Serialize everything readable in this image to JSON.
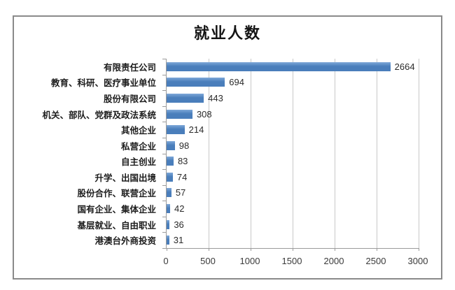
{
  "chart_data": {
    "type": "bar",
    "orientation": "horizontal",
    "title": "就业人数",
    "categories": [
      "有限责任公司",
      "教育、科研、医疗事业单位",
      "股份有限公司",
      "机关、部队、党群及政法系统",
      "其他企业",
      "私营企业",
      "自主创业",
      "升学、出国出境",
      "股份合作、联营企业",
      "国有企业、集体企业",
      "基层就业、自由职业",
      "港澳台外商投资"
    ],
    "values": [
      2664,
      694,
      443,
      308,
      214,
      98,
      83,
      74,
      57,
      42,
      36,
      31
    ],
    "value_labels": [
      "2664",
      "694",
      "443",
      "308",
      "214",
      "98",
      "83",
      "74",
      "57",
      "42",
      "36",
      "31"
    ],
    "xlim": [
      0,
      3000
    ],
    "x_ticks": [
      "0",
      "500",
      "1000",
      "1500",
      "2000",
      "2500",
      "3000"
    ],
    "x_tick_values": [
      0,
      500,
      1000,
      1500,
      2000,
      2500,
      3000
    ],
    "grid": true,
    "legend": false,
    "xlabel": "",
    "ylabel": ""
  },
  "colors": {
    "bar": "#4a7ebb",
    "bar_top": "#7fa8d9",
    "grid": "#c9c9c9",
    "axis": "#9b9b9b",
    "frame_border": "#8a8a8a",
    "text": "#1c1c1c"
  }
}
